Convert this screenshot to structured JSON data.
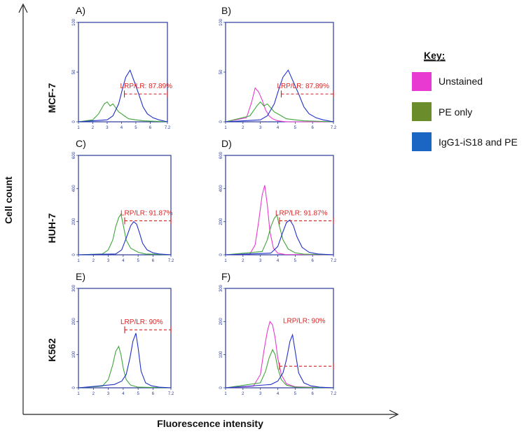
{
  "axes": {
    "x_title": "Fluorescence intensity",
    "y_title": "Cell count"
  },
  "key": {
    "title": "Key:",
    "items": [
      {
        "label": "Unstained",
        "color": "#e83ad0"
      },
      {
        "label": "PE only",
        "color": "#6a8c2a"
      },
      {
        "label": "IgG1-iS18 and PE",
        "color": "#1a66c2"
      }
    ]
  },
  "rows": [
    {
      "label": "MCF-7"
    },
    {
      "label": "HUH-7"
    },
    {
      "label": "K562"
    }
  ],
  "colors": {
    "unstained": "#e83ad0",
    "pe_only": "#3fa63a",
    "igg1": "#2030c8",
    "gate": "#d22020",
    "frame": "#2a3a9a"
  },
  "chart_data": [
    {
      "type": "line",
      "panel": "A)",
      "cell_line": "MCF-7",
      "ylim": [
        0,
        100
      ],
      "yticks": [
        "0",
        "50",
        "100"
      ],
      "xlim": [
        1,
        7.2
      ],
      "log_scale": true,
      "gate_label": "LRP/LR: 87.89%",
      "gate_range": [
        4.2,
        7.2
      ],
      "gate_height": 28,
      "series": [
        {
          "name": "PE only",
          "x": [
            1,
            2,
            2.4,
            2.8,
            3.0,
            3.2,
            3.4,
            3.6,
            3.8,
            4.0,
            4.2,
            4.5,
            5.0,
            5.5,
            7.2
          ],
          "y": [
            0,
            2,
            8,
            18,
            20,
            16,
            18,
            14,
            10,
            8,
            6,
            3,
            2,
            1,
            0
          ]
        },
        {
          "name": "IgG1-iS18 and PE",
          "x": [
            1,
            3.0,
            3.4,
            3.8,
            4.1,
            4.3,
            4.6,
            4.9,
            5.2,
            5.5,
            5.8,
            6.2,
            6.6,
            7.2
          ],
          "y": [
            0,
            2,
            6,
            18,
            35,
            45,
            52,
            40,
            28,
            15,
            8,
            4,
            2,
            0
          ]
        }
      ]
    },
    {
      "type": "line",
      "panel": "B)",
      "cell_line": "MCF-7",
      "ylim": [
        0,
        100
      ],
      "yticks": [
        "0",
        "50",
        "100"
      ],
      "xlim": [
        1,
        7.2
      ],
      "log_scale": true,
      "gate_label": "LRP/LR: 87.89%",
      "gate_range": [
        4.2,
        7.2
      ],
      "gate_height": 28,
      "series": [
        {
          "name": "Unstained",
          "x": [
            1,
            2.2,
            2.5,
            2.7,
            2.9,
            3.1,
            3.3,
            3.5,
            3.7,
            4.0,
            4.5,
            7.2
          ],
          "y": [
            0,
            4,
            20,
            34,
            30,
            22,
            12,
            6,
            3,
            1,
            0,
            0
          ]
        },
        {
          "name": "PE only",
          "x": [
            1,
            2.4,
            2.8,
            3.0,
            3.2,
            3.4,
            3.6,
            3.8,
            4.0,
            4.2,
            4.5,
            5.0,
            5.5,
            7.2
          ],
          "y": [
            0,
            6,
            16,
            20,
            16,
            18,
            14,
            10,
            8,
            6,
            3,
            2,
            1,
            0
          ]
        },
        {
          "name": "IgG1-iS18 and PE",
          "x": [
            1,
            3.0,
            3.4,
            3.8,
            4.1,
            4.3,
            4.6,
            4.9,
            5.2,
            5.5,
            5.8,
            6.2,
            6.6,
            7.2
          ],
          "y": [
            0,
            2,
            6,
            18,
            35,
            45,
            52,
            40,
            28,
            15,
            8,
            4,
            2,
            0
          ]
        }
      ]
    },
    {
      "type": "line",
      "panel": "C)",
      "cell_line": "HUH-7",
      "ylim": [
        0,
        600
      ],
      "yticks": [
        "0",
        "200",
        "400",
        "600"
      ],
      "xlim": [
        1,
        7.2
      ],
      "log_scale": true,
      "gate_label": "LRP/LR: 91.87%",
      "gate_range": [
        4.1,
        7.2
      ],
      "gate_height": 205,
      "series": [
        {
          "name": "PE only",
          "x": [
            1,
            2.6,
            3.0,
            3.3,
            3.5,
            3.7,
            3.85,
            4.0,
            4.2,
            4.5,
            5.0,
            5.5,
            7.2
          ],
          "y": [
            0,
            5,
            30,
            90,
            170,
            225,
            245,
            180,
            90,
            40,
            15,
            5,
            0
          ]
        },
        {
          "name": "IgG1-iS18 and PE",
          "x": [
            1,
            3.5,
            3.9,
            4.2,
            4.5,
            4.7,
            4.9,
            5.1,
            5.3,
            5.6,
            6.0,
            6.4,
            7.2
          ],
          "y": [
            0,
            5,
            30,
            100,
            175,
            200,
            185,
            130,
            70,
            30,
            12,
            5,
            0
          ]
        }
      ]
    },
    {
      "type": "line",
      "panel": "D)",
      "cell_line": "HUH-7",
      "ylim": [
        0,
        600
      ],
      "yticks": [
        "0",
        "200",
        "400",
        "600"
      ],
      "xlim": [
        1,
        7.2
      ],
      "log_scale": true,
      "gate_label": "LRP/LR: 91.87%",
      "gate_range": [
        4.1,
        7.2
      ],
      "gate_height": 205,
      "series": [
        {
          "name": "Unstained",
          "x": [
            1,
            2.4,
            2.7,
            2.9,
            3.1,
            3.25,
            3.4,
            3.55,
            3.75,
            4.0,
            4.4,
            7.2
          ],
          "y": [
            0,
            5,
            60,
            200,
            360,
            420,
            300,
            140,
            40,
            10,
            2,
            0
          ]
        },
        {
          "name": "PE only",
          "x": [
            1,
            3.1,
            3.4,
            3.6,
            3.8,
            3.95,
            4.1,
            4.3,
            4.6,
            5.0,
            5.5,
            7.2
          ],
          "y": [
            0,
            20,
            90,
            170,
            220,
            240,
            170,
            90,
            35,
            12,
            4,
            0
          ]
        },
        {
          "name": "IgG1-iS18 and PE",
          "x": [
            1,
            3.6,
            4.0,
            4.3,
            4.5,
            4.7,
            4.9,
            5.1,
            5.4,
            5.8,
            6.3,
            7.2
          ],
          "y": [
            0,
            10,
            50,
            140,
            195,
            210,
            175,
            110,
            45,
            15,
            5,
            0
          ]
        }
      ]
    },
    {
      "type": "line",
      "panel": "E)",
      "cell_line": "K562",
      "ylim": [
        0,
        300
      ],
      "yticks": [
        "0",
        "100",
        "200",
        "300"
      ],
      "xlim": [
        1,
        7.2
      ],
      "log_scale": true,
      "gate_label": "LRP/LR: 90%",
      "gate_range": [
        4.1,
        7.2
      ],
      "gate_height": 175,
      "series": [
        {
          "name": "PE only",
          "x": [
            1,
            2.6,
            3.0,
            3.3,
            3.5,
            3.7,
            3.85,
            4.0,
            4.2,
            4.5,
            5.0,
            7.2
          ],
          "y": [
            0,
            5,
            25,
            70,
            110,
            125,
            100,
            60,
            25,
            8,
            2,
            0
          ]
        },
        {
          "name": "IgG1-iS18 and PE",
          "x": [
            1,
            3.4,
            3.9,
            4.2,
            4.45,
            4.65,
            4.85,
            5.0,
            5.2,
            5.5,
            5.9,
            6.4,
            7.2
          ],
          "y": [
            0,
            10,
            20,
            40,
            90,
            140,
            165,
            120,
            50,
            15,
            6,
            2,
            0
          ]
        }
      ]
    },
    {
      "type": "line",
      "panel": "F)",
      "cell_line": "K562",
      "ylim": [
        0,
        300
      ],
      "yticks": [
        "0",
        "100",
        "200",
        "300"
      ],
      "xlim": [
        1,
        7.2
      ],
      "log_scale": true,
      "gate_label": "LRP/LR: 90%",
      "gate_range": [
        4.1,
        7.2
      ],
      "gate_height": 65,
      "series": [
        {
          "name": "Unstained",
          "x": [
            1,
            2.6,
            3.0,
            3.2,
            3.4,
            3.55,
            3.7,
            3.85,
            4.0,
            4.2,
            4.5,
            5.0,
            7.2
          ],
          "y": [
            0,
            5,
            40,
            110,
            170,
            200,
            190,
            150,
            90,
            40,
            12,
            3,
            0
          ]
        },
        {
          "name": "PE only",
          "x": [
            1,
            3.0,
            3.3,
            3.5,
            3.7,
            3.85,
            4.0,
            4.2,
            4.5,
            5.0,
            7.2
          ],
          "y": [
            0,
            15,
            50,
            90,
            115,
            100,
            60,
            25,
            8,
            2,
            0
          ]
        },
        {
          "name": "IgG1-iS18 and PE",
          "x": [
            1,
            3.6,
            4.0,
            4.3,
            4.5,
            4.7,
            4.85,
            5.0,
            5.2,
            5.5,
            5.9,
            6.4,
            7.2
          ],
          "y": [
            0,
            10,
            20,
            45,
            85,
            140,
            160,
            110,
            45,
            15,
            6,
            2,
            0
          ]
        }
      ]
    }
  ]
}
